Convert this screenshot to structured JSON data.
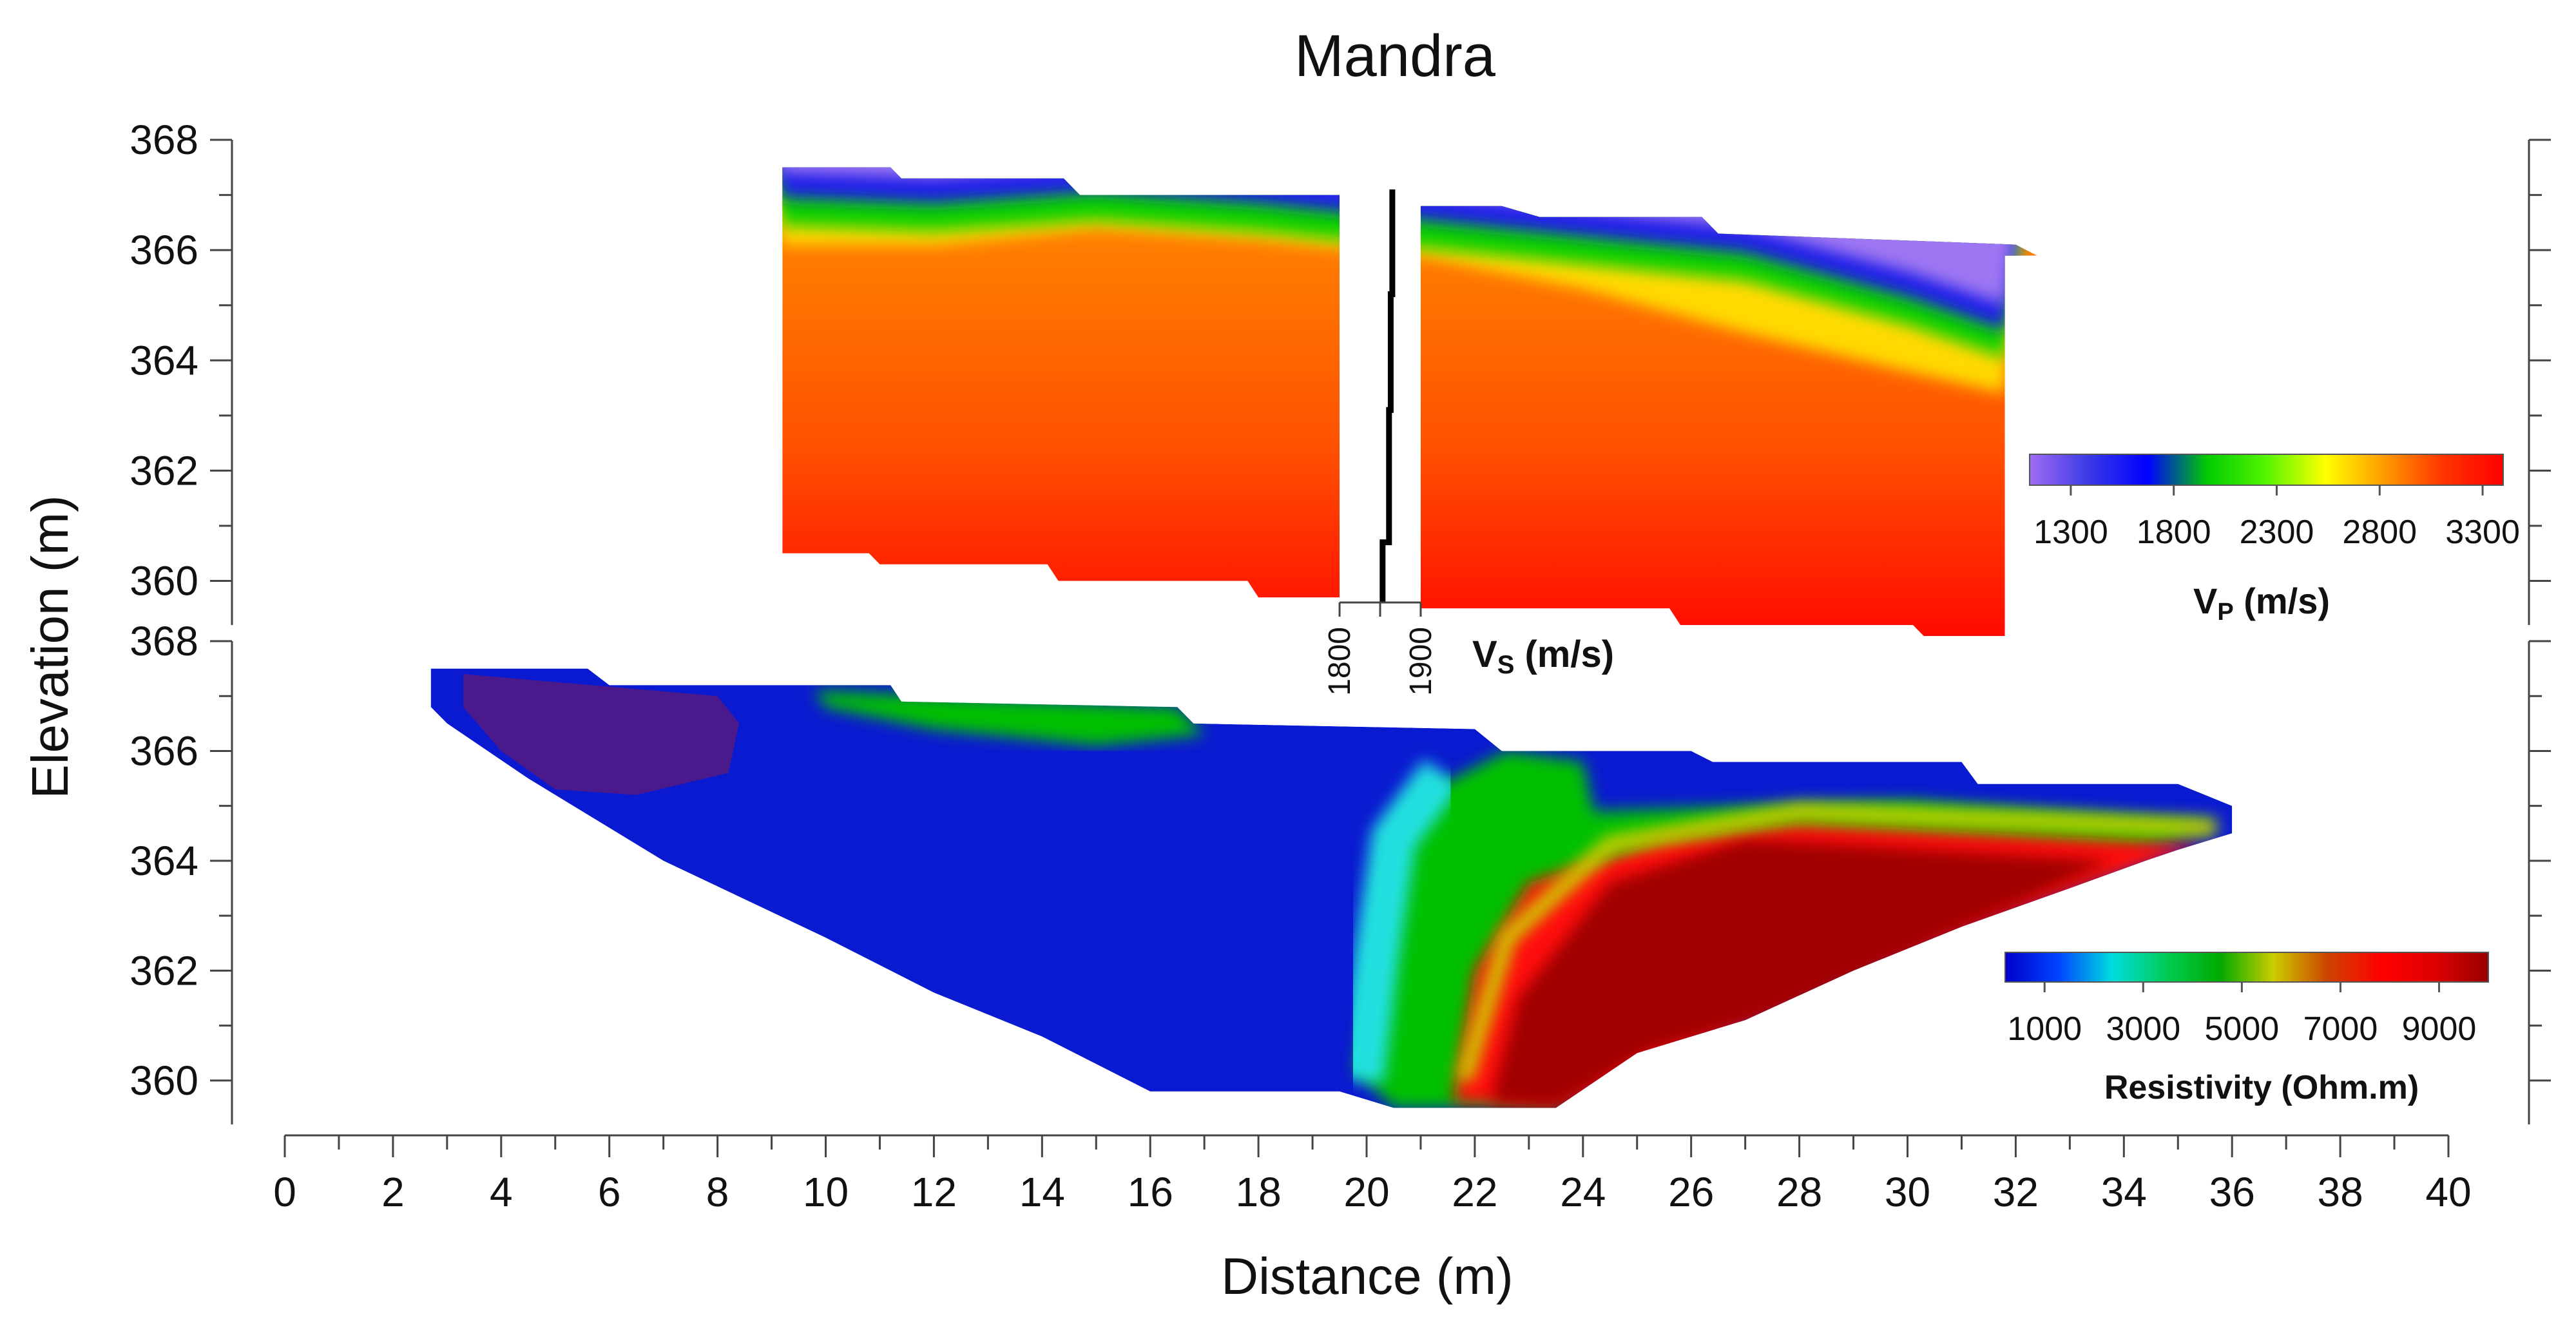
{
  "chart_data": {
    "type": "heatmap",
    "title": "Mandra",
    "xlabel": "Distance (m)",
    "ylabel": "Elevation (m)",
    "xlim": [
      0,
      40
    ],
    "x_ticks": [
      0,
      2,
      4,
      6,
      8,
      10,
      12,
      14,
      16,
      18,
      20,
      22,
      24,
      26,
      28,
      30,
      32,
      34,
      36,
      38,
      40
    ],
    "panels": [
      {
        "name": "vp-section",
        "quantity": "P-wave velocity",
        "ylim": [
          359.2,
          368
        ],
        "y_ticks": [
          360,
          362,
          364,
          366,
          368
        ],
        "colorbar": {
          "label_main": "V",
          "label_sub": "P",
          "label_unit": " (m/s)",
          "ticks": [
            1300,
            1800,
            2300,
            2800,
            3300
          ],
          "range": [
            1100,
            3400
          ],
          "colors": [
            "#a06cf5",
            "#3a3ae8",
            "#0000ff",
            "#00cc00",
            "#55f500",
            "#ffff00",
            "#ff9900",
            "#ff3300",
            "#ff0000"
          ]
        },
        "section_x_range": [
          9.2,
          31.8
        ],
        "top_profile": [
          [
            9.2,
            367.5
          ],
          [
            11.2,
            367.5
          ],
          [
            11.4,
            367.3
          ],
          [
            14.4,
            367.3
          ],
          [
            14.7,
            367.0
          ],
          [
            19.5,
            367.0
          ],
          [
            19.5,
            359.7
          ],
          [
            21.0,
            359.7
          ],
          [
            21.0,
            366.8
          ],
          [
            22.5,
            366.8
          ],
          [
            23.2,
            366.6
          ],
          [
            26.2,
            366.6
          ],
          [
            26.5,
            366.3
          ],
          [
            32.0,
            366.1
          ],
          [
            32.4,
            365.9
          ],
          [
            31.8,
            365.9
          ]
        ],
        "bottom_profile": [
          [
            31.8,
            359.0
          ],
          [
            30.3,
            359.0
          ],
          [
            30.1,
            359.2
          ],
          [
            25.8,
            359.2
          ],
          [
            25.6,
            359.5
          ],
          [
            21.0,
            359.5
          ],
          [
            21.0,
            359.7
          ],
          [
            18.0,
            359.7
          ],
          [
            17.8,
            360.0
          ],
          [
            14.3,
            360.0
          ],
          [
            14.1,
            360.3
          ],
          [
            11.0,
            360.3
          ],
          [
            10.8,
            360.5
          ],
          [
            9.2,
            360.5
          ]
        ],
        "boundaries": [
          {
            "name": "top-low-velocity-layer",
            "points": [
              [
                9.2,
                366.6
              ],
              [
                12,
                366.5
              ],
              [
                15,
                366.7
              ],
              [
                18,
                366.5
              ],
              [
                21,
                366.2
              ],
              [
                24,
                365.9
              ],
              [
                27,
                365.6
              ],
              [
                30,
                364.8
              ],
              [
                31.8,
                364.2
              ]
            ]
          },
          {
            "name": "gradient-to-fast-layer",
            "points": [
              [
                9.2,
                366.1
              ],
              [
                12,
                366.1
              ],
              [
                15,
                366.4
              ],
              [
                18,
                366.2
              ],
              [
                21,
                365.9
              ],
              [
                24,
                365.3
              ],
              [
                27,
                364.5
              ],
              [
                30,
                363.8
              ],
              [
                31.8,
                363.4
              ]
            ]
          }
        ],
        "borehole": {
          "x_range": [
            19.5,
            21.0
          ],
          "vs_axis_label_main": "V",
          "vs_axis_label_sub": "S",
          "vs_axis_label_unit": " (m/s)",
          "vs_ticks": [
            1800,
            1900
          ],
          "vs_range": [
            1800,
            1900
          ],
          "vs_profile": [
            [
              1865,
              367.1
            ],
            [
              1865,
              365.2
            ],
            [
              1863,
              365.2
            ],
            [
              1863,
              363.1
            ],
            [
              1861,
              363.1
            ],
            [
              1861,
              360.7
            ],
            [
              1853,
              360.7
            ],
            [
              1853,
              359.6
            ]
          ]
        }
      },
      {
        "name": "resistivity-section",
        "quantity": "Resistivity",
        "ylim": [
          359.2,
          368
        ],
        "y_ticks": [
          360,
          362,
          364,
          366,
          368
        ],
        "colorbar": {
          "label": "Resistivity (Ohm.m)",
          "ticks": [
            1000,
            3000,
            5000,
            7000,
            9000
          ],
          "range": [
            200,
            10000
          ],
          "colors": [
            "#0000cc",
            "#0044ff",
            "#00dddd",
            "#00cc55",
            "#00aa00",
            "#cccc00",
            "#cc4400",
            "#ff0000",
            "#dd0000",
            "#990000"
          ]
        },
        "outline": [
          [
            2.7,
            367.5
          ],
          [
            5.6,
            367.5
          ],
          [
            6.0,
            367.2
          ],
          [
            11.2,
            367.2
          ],
          [
            11.4,
            366.9
          ],
          [
            16.5,
            366.8
          ],
          [
            16.8,
            366.5
          ],
          [
            22.0,
            366.4
          ],
          [
            22.5,
            366.0
          ],
          [
            26.0,
            366.0
          ],
          [
            26.4,
            365.8
          ],
          [
            31.0,
            365.8
          ],
          [
            31.3,
            365.4
          ],
          [
            35.0,
            365.4
          ],
          [
            36.0,
            365.0
          ],
          [
            36.0,
            364.5
          ],
          [
            35.0,
            364.2
          ],
          [
            34.4,
            364.0
          ],
          [
            33.0,
            363.5
          ],
          [
            31.0,
            362.8
          ],
          [
            29.0,
            362.0
          ],
          [
            27.0,
            361.1
          ],
          [
            25.0,
            360.5
          ],
          [
            23.5,
            359.5
          ],
          [
            20.5,
            359.5
          ],
          [
            19.5,
            359.8
          ],
          [
            16.0,
            359.8
          ],
          [
            14.0,
            360.8
          ],
          [
            12.0,
            361.6
          ],
          [
            10.0,
            362.6
          ],
          [
            7.0,
            364.0
          ],
          [
            4.5,
            365.5
          ],
          [
            3.0,
            366.5
          ],
          [
            2.7,
            366.8
          ]
        ],
        "zones": [
          {
            "name": "shallow-conductive-body",
            "value": 700,
            "points": [
              [
                3.3,
                367.4
              ],
              [
                8.0,
                367.0
              ],
              [
                8.4,
                366.5
              ],
              [
                8.2,
                365.6
              ],
              [
                6.5,
                365.2
              ],
              [
                5.0,
                365.3
              ],
              [
                4.0,
                366.0
              ],
              [
                3.3,
                366.8
              ]
            ]
          },
          {
            "name": "near-surface-moderate-zone",
            "value": 4200,
            "points": [
              [
                9.8,
                367.1
              ],
              [
                16.5,
                366.8
              ],
              [
                17.0,
                366.3
              ],
              [
                15.0,
                366.1
              ],
              [
                12.0,
                366.4
              ],
              [
                10.0,
                366.8
              ]
            ]
          },
          {
            "name": "transition-zone",
            "value": 4000,
            "points": [
              [
                21.0,
                365.2
              ],
              [
                22.6,
                366.0
              ],
              [
                24.0,
                365.8
              ],
              [
                24.2,
                364.9
              ],
              [
                30.0,
                365.1
              ],
              [
                35.8,
                364.7
              ],
              [
                33.0,
                363.7
              ],
              [
                28.0,
                362.5
              ],
              [
                25.0,
                361.2
              ],
              [
                23.5,
                359.5
              ],
              [
                20.5,
                359.5
              ],
              [
                19.8,
                360.2
              ],
              [
                20.2,
                362.5
              ],
              [
                20.4,
                364.3
              ]
            ]
          },
          {
            "name": "resistive-transition-zone",
            "value": 7200,
            "points": [
              [
                21.6,
                359.6
              ],
              [
                22.0,
                362.0
              ],
              [
                23.0,
                363.6
              ],
              [
                25.5,
                364.4
              ],
              [
                28.0,
                364.7
              ],
              [
                35.5,
                364.3
              ],
              [
                33.5,
                363.6
              ],
              [
                29.0,
                362.0
              ],
              [
                25.5,
                360.4
              ],
              [
                23.5,
                359.5
              ]
            ]
          },
          {
            "name": "high-resistivity-body",
            "value": 9800,
            "points": [
              [
                22.3,
                359.6
              ],
              [
                22.8,
                361.5
              ],
              [
                24.5,
                363.6
              ],
              [
                27.0,
                364.4
              ],
              [
                33.8,
                364.0
              ],
              [
                32.0,
                363.2
              ],
              [
                30.0,
                362.3
              ],
              [
                27.5,
                361.2
              ],
              [
                25.2,
                360.5
              ],
              [
                23.5,
                359.5
              ]
            ]
          }
        ]
      }
    ]
  }
}
